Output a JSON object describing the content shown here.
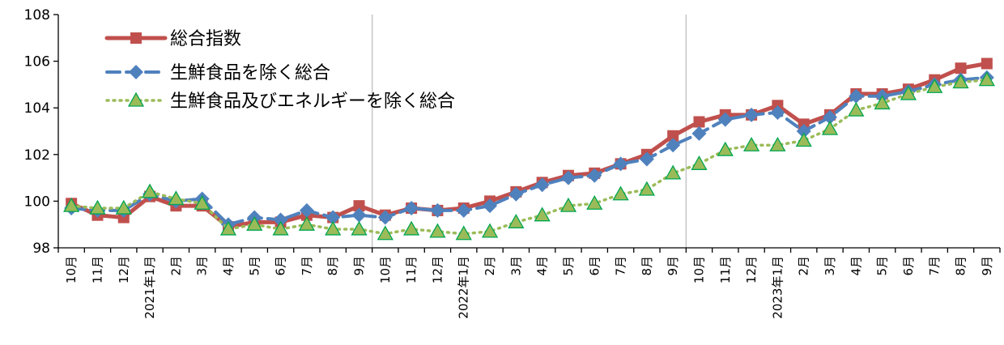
{
  "chart_data": {
    "type": "line",
    "title": "",
    "xlabel": "",
    "ylabel": "",
    "ylim": [
      98,
      108
    ],
    "yticks": [
      98,
      100,
      102,
      104,
      106,
      108
    ],
    "grid": "vertical separators at year-end (Sep / Oct)",
    "legend": "top-left",
    "categories": [
      "10月",
      "11月",
      "12月",
      "1月",
      "2月",
      "3月",
      "4月",
      "5月",
      "6月",
      "7月",
      "8月",
      "9月",
      "10月",
      "11月",
      "12月",
      "1月",
      "2月",
      "3月",
      "4月",
      "5月",
      "6月",
      "7月",
      "8月",
      "9月",
      "10月",
      "11月",
      "12月",
      "1月",
      "2月",
      "3月",
      "4月",
      "5月",
      "6月",
      "7月",
      "8月",
      "9月"
    ],
    "year_labels": [
      {
        "index": 3,
        "label": "2021年"
      },
      {
        "index": 15,
        "label": "2022年"
      },
      {
        "index": 27,
        "label": "2023年"
      }
    ],
    "series": [
      {
        "name": "総合指数",
        "color": "#C0504D",
        "marker": "square",
        "values": [
          99.9,
          99.4,
          99.3,
          100.2,
          99.8,
          99.8,
          98.9,
          99.1,
          99.1,
          99.4,
          99.3,
          99.8,
          99.4,
          99.7,
          99.6,
          99.7,
          100.0,
          100.4,
          100.8,
          101.1,
          101.2,
          101.6,
          102.0,
          102.8,
          103.4,
          103.7,
          103.7,
          104.1,
          103.3,
          103.7,
          104.6,
          104.6,
          104.8,
          105.2,
          105.7,
          105.9
        ]
      },
      {
        "name": "生鮮食品を除く総合",
        "color": "#4F81BD",
        "marker": "diamond",
        "values": [
          99.7,
          99.6,
          99.6,
          100.3,
          100.0,
          100.1,
          99.0,
          99.3,
          99.2,
          99.6,
          99.3,
          99.4,
          99.3,
          99.7,
          99.6,
          99.6,
          99.8,
          100.3,
          100.7,
          101.0,
          101.1,
          101.6,
          101.8,
          102.4,
          102.9,
          103.5,
          103.7,
          103.8,
          103.0,
          103.6,
          104.5,
          104.5,
          104.7,
          105.0,
          105.2,
          105.3
        ]
      },
      {
        "name": "生鮮食品及びエネルギーを除く総合",
        "color": "#9BBB59",
        "marker": "triangle",
        "values": [
          99.8,
          99.7,
          99.7,
          100.4,
          100.1,
          99.9,
          98.8,
          99.0,
          98.8,
          99.0,
          98.8,
          98.8,
          98.6,
          98.8,
          98.7,
          98.6,
          98.7,
          99.1,
          99.4,
          99.8,
          99.9,
          100.3,
          100.5,
          101.2,
          101.6,
          102.2,
          102.4,
          102.4,
          102.6,
          103.1,
          103.9,
          104.2,
          104.6,
          104.9,
          105.1,
          105.2
        ]
      }
    ]
  }
}
